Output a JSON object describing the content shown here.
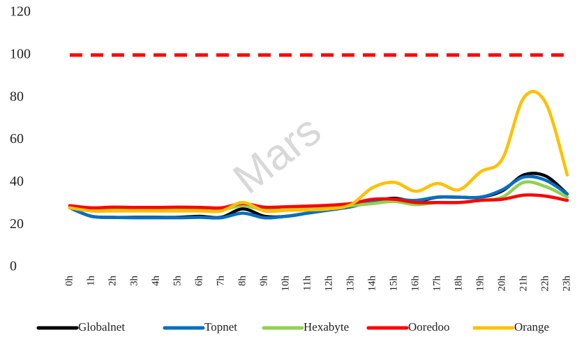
{
  "chart_data": {
    "type": "line",
    "watermark": "Mars",
    "categories": [
      "0h",
      "1h",
      "2h",
      "3h",
      "4h",
      "5h",
      "6h",
      "7h",
      "8h",
      "9h",
      "10h",
      "11h",
      "12h",
      "13h",
      "14h",
      "15h",
      "16h",
      "17h",
      "18h",
      "19h",
      "20h",
      "21h",
      "22h",
      "23h"
    ],
    "series": [
      {
        "name": "Globalnet",
        "color": "#000000",
        "values": [
          28,
          24,
          23.5,
          23.5,
          23.5,
          23.5,
          24,
          23.5,
          27.5,
          24,
          24,
          25.5,
          27,
          28.5,
          31,
          32.5,
          31,
          33,
          33,
          33,
          36,
          43.5,
          43,
          34.5
        ]
      },
      {
        "name": "Topnet",
        "color": "#0070c0",
        "values": [
          28,
          24,
          23.5,
          23.3,
          23.3,
          23.3,
          23.5,
          23.3,
          25.5,
          23.3,
          24,
          25.5,
          27,
          28.5,
          31,
          32,
          31.5,
          33,
          33,
          33,
          36.5,
          42.5,
          41,
          34.5
        ]
      },
      {
        "name": "Hexabyte",
        "color": "#92d050",
        "values": [
          28,
          27,
          27,
          27,
          27,
          27,
          27,
          27,
          29,
          27,
          27,
          27.5,
          28,
          29,
          30,
          31,
          29.5,
          30.5,
          30.5,
          31.5,
          33,
          40,
          38,
          33
        ]
      },
      {
        "name": "Ooredoo",
        "color": "#ff0000",
        "values": [
          29,
          28,
          28.3,
          28.2,
          28.2,
          28.3,
          28.2,
          28,
          30,
          28.3,
          28.5,
          28.8,
          29.2,
          30,
          32,
          32,
          30.5,
          30.5,
          30.5,
          31.5,
          32,
          34,
          33.5,
          31.5
        ]
      },
      {
        "name": "Orange",
        "color": "#ffc000",
        "values": [
          28,
          26.5,
          26.5,
          26.5,
          26.5,
          26.5,
          26.5,
          26.5,
          30.5,
          26.5,
          26.8,
          27,
          27.5,
          29.5,
          37.5,
          40,
          35.8,
          39.5,
          36.5,
          45,
          51,
          80,
          77.5,
          43.5
        ]
      }
    ],
    "threshold": 100,
    "threshold_color": "#ff0000",
    "ylim": [
      0,
      120
    ],
    "yticks": [
      0,
      20,
      40,
      60,
      80,
      100,
      120
    ],
    "grid": false,
    "legend": "bottom"
  }
}
